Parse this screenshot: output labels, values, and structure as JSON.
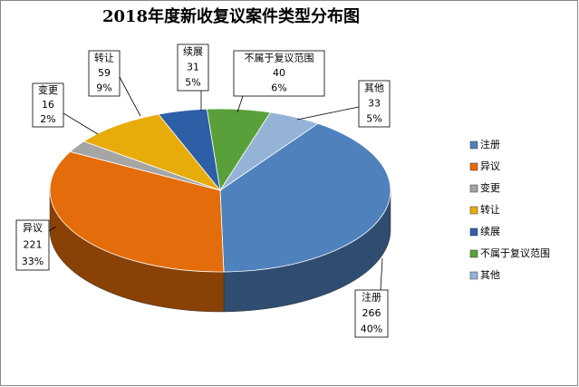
{
  "chart_data": {
    "type": "pie3d",
    "title": "2018年度新收复议案件类型分布图",
    "categories": [
      "注册",
      "异议",
      "变更",
      "转让",
      "续展",
      "不属于复议范围",
      "其他"
    ],
    "values": [
      266,
      221,
      16,
      59,
      31,
      40,
      33
    ],
    "percent_labels": [
      "40%",
      "33%",
      "2%",
      "9%",
      "5%",
      "6%",
      "5%"
    ],
    "colors": [
      "#4f81bd",
      "#e46c0a",
      "#a5a5a5",
      "#e8ac0a",
      "#2e5fa6",
      "#5aa03a",
      "#95b3d7"
    ],
    "legend": "right"
  }
}
